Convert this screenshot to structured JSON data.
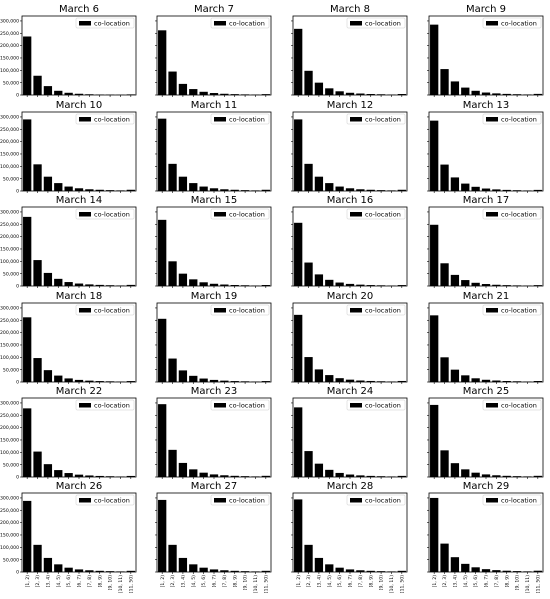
{
  "chart_data": {
    "type": "bar",
    "layout": "6x4 grid of small multiples",
    "categories": [
      "[1, 2)",
      "[2, 3)",
      "[3, 4)",
      "[4, 5)",
      "[5, 6)",
      "[6, 7)",
      "[7, 8)",
      "[8, 9)",
      "[9, 10)",
      "[10, 11)",
      "[11, 50)"
    ],
    "y_ticks": [
      "0",
      "50,000",
      "100,000",
      "150,000",
      "200,000",
      "250,000",
      "300,000"
    ],
    "ylim": [
      0,
      320000
    ],
    "legend_label": "co-location",
    "legend_position": "top-right",
    "bar_color": "#000000",
    "panels": [
      {
        "title": "March 6",
        "values": [
          237000,
          78000,
          36000,
          17000,
          9000,
          5000,
          3000,
          2000,
          1500,
          1000,
          2500
        ]
      },
      {
        "title": "March 7",
        "values": [
          262000,
          95000,
          45000,
          24000,
          13000,
          8000,
          5000,
          3500,
          2500,
          1800,
          3500
        ]
      },
      {
        "title": "March 8",
        "values": [
          268000,
          98000,
          50000,
          27000,
          15000,
          9000,
          6000,
          4000,
          3000,
          2000,
          4000
        ]
      },
      {
        "title": "March 9",
        "values": [
          285000,
          105000,
          55000,
          30000,
          17000,
          10000,
          6500,
          4500,
          3200,
          2200,
          4500
        ]
      },
      {
        "title": "March 10",
        "values": [
          290000,
          108000,
          58000,
          32000,
          18000,
          11000,
          7000,
          5000,
          3500,
          2500,
          5000
        ]
      },
      {
        "title": "March 11",
        "values": [
          293000,
          110000,
          58000,
          32000,
          18000,
          11000,
          7000,
          5000,
          3500,
          2500,
          5000
        ]
      },
      {
        "title": "March 12",
        "values": [
          290000,
          110000,
          58000,
          32000,
          18000,
          11000,
          7000,
          5000,
          3500,
          2500,
          5000
        ]
      },
      {
        "title": "March 13",
        "values": [
          285000,
          107000,
          55000,
          30000,
          17000,
          10000,
          6500,
          4500,
          3200,
          2200,
          4500
        ]
      },
      {
        "title": "March 14",
        "values": [
          280000,
          105000,
          53000,
          29000,
          16000,
          10000,
          6500,
          4500,
          3200,
          2200,
          4500
        ]
      },
      {
        "title": "March 15",
        "values": [
          268000,
          100000,
          50000,
          27000,
          15000,
          9000,
          6000,
          4000,
          3000,
          2000,
          4000
        ]
      },
      {
        "title": "March 16",
        "values": [
          256000,
          95000,
          47000,
          25000,
          14000,
          8500,
          5500,
          3800,
          2800,
          1900,
          3800
        ]
      },
      {
        "title": "March 17",
        "values": [
          248000,
          92000,
          45000,
          24000,
          13000,
          8000,
          5000,
          3500,
          2500,
          1800,
          3500
        ]
      },
      {
        "title": "March 18",
        "values": [
          262000,
          97000,
          48000,
          26000,
          14500,
          8500,
          5500,
          3800,
          2800,
          1900,
          3800
        ]
      },
      {
        "title": "March 19",
        "values": [
          256000,
          95000,
          47000,
          25000,
          14000,
          8500,
          5500,
          3800,
          2800,
          1900,
          3800
        ]
      },
      {
        "title": "March 20",
        "values": [
          272000,
          101000,
          51000,
          28000,
          15500,
          9500,
          6000,
          4200,
          3000,
          2100,
          4200
        ]
      },
      {
        "title": "March 21",
        "values": [
          270000,
          100000,
          50000,
          27000,
          15000,
          9000,
          6000,
          4000,
          3000,
          2000,
          4000
        ]
      },
      {
        "title": "March 22",
        "values": [
          278000,
          103000,
          52000,
          28000,
          16000,
          9500,
          6200,
          4300,
          3100,
          2100,
          4300
        ]
      },
      {
        "title": "March 23",
        "values": [
          295000,
          110000,
          57000,
          31000,
          17500,
          10500,
          7000,
          4800,
          3400,
          2400,
          4800
        ]
      },
      {
        "title": "March 24",
        "values": [
          282000,
          105000,
          54000,
          29000,
          16500,
          10000,
          6500,
          4500,
          3200,
          2200,
          4500
        ]
      },
      {
        "title": "March 25",
        "values": [
          292000,
          108000,
          56000,
          31000,
          17500,
          10500,
          7000,
          4800,
          3400,
          2400,
          4800
        ]
      },
      {
        "title": "March 26",
        "values": [
          288000,
          110000,
          57000,
          31000,
          17500,
          10500,
          7000,
          4800,
          3400,
          2400,
          4800
        ]
      },
      {
        "title": "March 27",
        "values": [
          292000,
          110000,
          57000,
          31000,
          17500,
          10500,
          7000,
          4800,
          3400,
          2400,
          4800
        ]
      },
      {
        "title": "March 28",
        "values": [
          294000,
          110000,
          57000,
          31000,
          17500,
          10500,
          7000,
          4800,
          3400,
          2400,
          4800
        ]
      },
      {
        "title": "March 29",
        "values": [
          300000,
          115000,
          60000,
          33000,
          19000,
          11500,
          7500,
          5200,
          3700,
          2600,
          5200
        ]
      }
    ]
  }
}
